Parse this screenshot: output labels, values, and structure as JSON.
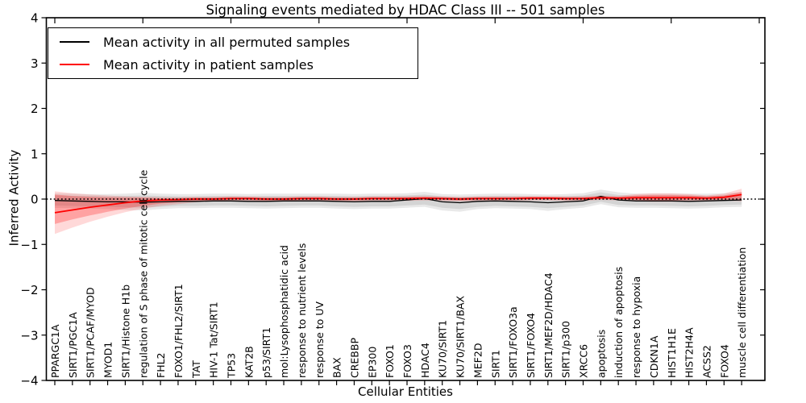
{
  "chart_data": {
    "type": "line",
    "title": "Signaling events mediated by HDAC Class III -- 501 samples",
    "xlabel": "Cellular Entities",
    "ylabel": "Inferred Activity",
    "ylim": [
      -4,
      4
    ],
    "yticks": [
      -4,
      -3,
      -2,
      -1,
      0,
      1,
      2,
      3,
      4
    ],
    "grid": false,
    "legend_position": "upper left",
    "categories": [
      "PPARGC1A",
      "SIRT1/PGC1A",
      "SIRT1/PCAF/MYOD",
      "MYOD1",
      "SIRT1/Histone H1b",
      "regulation of S phase of mitotic cell cycle",
      "FHL2",
      "FOXO1/FHL2/SIRT1",
      "TAT",
      "HIV-1 Tat/SIRT1",
      "TP53",
      "KAT2B",
      "p53/SIRT1",
      "mol:Lysophosphatidic acid",
      "response to nutrient levels",
      "response to UV",
      "BAX",
      "CREBBP",
      "EP300",
      "FOXO1",
      "FOXO3",
      "HDAC4",
      "KU70/SIRT1",
      "KU70/SIRT1/BAX",
      "MEF2D",
      "SIRT1",
      "SIRT1/FOXO3a",
      "SIRT1/FOXO4",
      "SIRT1/MEF2D/HDAC4",
      "SIRT1/p300",
      "XRCC6",
      "apoptosis",
      "induction of apoptosis",
      "response to hypoxia",
      "CDKN1A",
      "HIST1H1E",
      "HIST2H4A",
      "ACSS2",
      "FOXO4",
      "muscle cell differentiation"
    ],
    "series": [
      {
        "name": "Mean activity in all permuted samples",
        "color": "#000000",
        "values": [
          -0.03,
          -0.04,
          -0.05,
          -0.06,
          -0.06,
          -0.07,
          -0.06,
          -0.05,
          -0.05,
          -0.04,
          -0.04,
          -0.05,
          -0.05,
          -0.04,
          -0.04,
          -0.04,
          -0.05,
          -0.06,
          -0.05,
          -0.05,
          -0.02,
          0.01,
          -0.06,
          -0.08,
          -0.05,
          -0.04,
          -0.05,
          -0.06,
          -0.08,
          -0.06,
          -0.04,
          0.06,
          -0.02,
          -0.04,
          -0.04,
          -0.04,
          -0.05,
          -0.04,
          -0.03,
          -0.02
        ]
      },
      {
        "name": "Mean activity in patient samples",
        "color": "#ff0000",
        "values": [
          -0.3,
          -0.24,
          -0.18,
          -0.13,
          -0.08,
          -0.04,
          -0.02,
          -0.01,
          0.0,
          0.0,
          0.01,
          0.01,
          0.0,
          0.0,
          0.01,
          0.01,
          0.0,
          0.0,
          0.01,
          0.01,
          0.01,
          0.02,
          0.01,
          0.0,
          0.01,
          0.01,
          0.01,
          0.02,
          0.02,
          0.01,
          0.01,
          0.03,
          0.02,
          0.03,
          0.03,
          0.03,
          0.03,
          0.02,
          0.04,
          0.1
        ]
      }
    ],
    "bands": [
      {
        "name": "permuted-samples-outer-band",
        "color": "#999999",
        "opacity": 0.22,
        "upper": [
          0.13,
          0.12,
          0.11,
          0.11,
          0.12,
          0.14,
          0.12,
          0.11,
          0.11,
          0.12,
          0.12,
          0.11,
          0.12,
          0.12,
          0.12,
          0.12,
          0.12,
          0.11,
          0.12,
          0.12,
          0.13,
          0.16,
          0.11,
          0.1,
          0.11,
          0.12,
          0.12,
          0.11,
          0.1,
          0.11,
          0.13,
          0.21,
          0.15,
          0.12,
          0.12,
          0.12,
          0.12,
          0.12,
          0.13,
          0.15
        ],
        "lower": [
          -0.19,
          -0.2,
          -0.21,
          -0.22,
          -0.24,
          -0.25,
          -0.22,
          -0.2,
          -0.2,
          -0.19,
          -0.19,
          -0.2,
          -0.21,
          -0.2,
          -0.19,
          -0.19,
          -0.21,
          -0.22,
          -0.21,
          -0.21,
          -0.19,
          -0.17,
          -0.25,
          -0.28,
          -0.22,
          -0.2,
          -0.21,
          -0.22,
          -0.26,
          -0.22,
          -0.19,
          -0.11,
          -0.18,
          -0.19,
          -0.19,
          -0.2,
          -0.21,
          -0.2,
          -0.18,
          -0.17
        ]
      },
      {
        "name": "permuted-samples-inner-band",
        "color": "#999999",
        "opacity": 0.26,
        "upper": [
          0.08,
          0.07,
          0.07,
          0.06,
          0.07,
          0.08,
          0.07,
          0.06,
          0.06,
          0.07,
          0.07,
          0.06,
          0.07,
          0.07,
          0.07,
          0.07,
          0.07,
          0.06,
          0.07,
          0.07,
          0.08,
          0.1,
          0.06,
          0.05,
          0.06,
          0.07,
          0.07,
          0.06,
          0.05,
          0.06,
          0.08,
          0.15,
          0.09,
          0.07,
          0.07,
          0.07,
          0.07,
          0.07,
          0.08,
          0.09
        ],
        "lower": [
          -0.14,
          -0.15,
          -0.16,
          -0.17,
          -0.18,
          -0.19,
          -0.17,
          -0.15,
          -0.15,
          -0.14,
          -0.14,
          -0.15,
          -0.16,
          -0.15,
          -0.14,
          -0.14,
          -0.16,
          -0.17,
          -0.16,
          -0.16,
          -0.14,
          -0.12,
          -0.19,
          -0.22,
          -0.17,
          -0.15,
          -0.16,
          -0.17,
          -0.2,
          -0.17,
          -0.14,
          -0.06,
          -0.13,
          -0.14,
          -0.14,
          -0.15,
          -0.16,
          -0.15,
          -0.13,
          -0.12
        ]
      },
      {
        "name": "patient-samples-outer-band",
        "color": "#ff0000",
        "opacity": 0.15,
        "upper": [
          0.17,
          0.13,
          0.1,
          0.08,
          0.06,
          0.05,
          0.04,
          0.04,
          0.05,
          0.05,
          0.06,
          0.06,
          0.05,
          0.05,
          0.06,
          0.06,
          0.05,
          0.05,
          0.06,
          0.06,
          0.06,
          0.07,
          0.06,
          0.05,
          0.06,
          0.06,
          0.06,
          0.07,
          0.07,
          0.06,
          0.06,
          0.08,
          0.07,
          0.11,
          0.13,
          0.13,
          0.11,
          0.08,
          0.12,
          0.23
        ],
        "lower": [
          -0.77,
          -0.63,
          -0.5,
          -0.39,
          -0.29,
          -0.21,
          -0.15,
          -0.11,
          -0.07,
          -0.05,
          -0.04,
          -0.04,
          -0.05,
          -0.05,
          -0.04,
          -0.04,
          -0.05,
          -0.05,
          -0.04,
          -0.04,
          -0.04,
          -0.03,
          -0.04,
          -0.05,
          -0.04,
          -0.04,
          -0.04,
          -0.03,
          -0.03,
          -0.04,
          -0.04,
          -0.02,
          -0.03,
          -0.05,
          -0.06,
          -0.06,
          -0.05,
          -0.04,
          -0.03,
          -0.05
        ]
      },
      {
        "name": "patient-samples-inner-band",
        "color": "#ff0000",
        "opacity": 0.25,
        "upper": [
          0.1,
          0.07,
          0.05,
          0.04,
          0.03,
          0.03,
          0.02,
          0.02,
          0.03,
          0.03,
          0.04,
          0.04,
          0.03,
          0.03,
          0.04,
          0.04,
          0.03,
          0.03,
          0.04,
          0.04,
          0.04,
          0.05,
          0.04,
          0.03,
          0.04,
          0.04,
          0.04,
          0.05,
          0.05,
          0.04,
          0.04,
          0.06,
          0.05,
          0.08,
          0.09,
          0.09,
          0.08,
          0.06,
          0.08,
          0.16
        ],
        "lower": [
          -0.55,
          -0.45,
          -0.36,
          -0.28,
          -0.21,
          -0.15,
          -0.1,
          -0.07,
          -0.04,
          -0.03,
          -0.02,
          -0.02,
          -0.03,
          -0.03,
          -0.02,
          -0.02,
          -0.03,
          -0.03,
          -0.02,
          -0.02,
          -0.02,
          -0.01,
          -0.02,
          -0.03,
          -0.02,
          -0.02,
          -0.02,
          -0.01,
          -0.01,
          -0.02,
          -0.02,
          0.0,
          -0.01,
          -0.02,
          -0.03,
          -0.03,
          -0.02,
          -0.02,
          -0.01,
          -0.02
        ]
      }
    ],
    "zero_line": {
      "value": 0,
      "style": "dotted",
      "color": "#000000"
    }
  }
}
